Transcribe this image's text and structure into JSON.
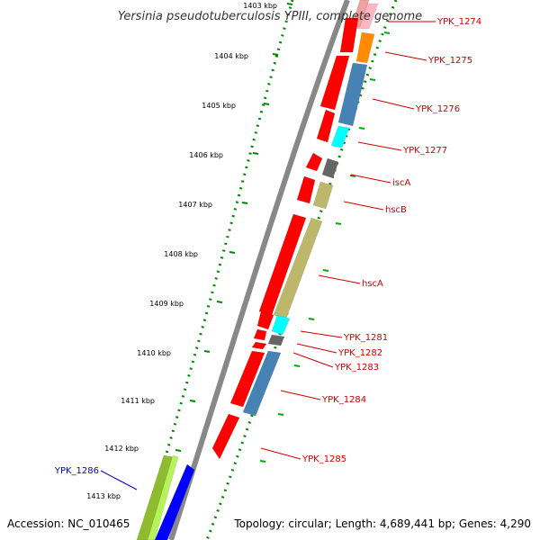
{
  "title": "Yersinia pseudotuberculosis YPIII, complete genome",
  "accession_text": "Accession: NC_010465",
  "summary_text": "Topology: circular; Length: 4,689,441 bp; Genes: 4,290",
  "colors": {
    "forward_strand": "#ff0000",
    "backbone": "#888888",
    "dotted_ruler": "#008800",
    "ticks_inner": "#00aa00",
    "label_forward": "#cc0000",
    "label_reverse": "#0000cc",
    "cds_blue": "#4682b4",
    "cds_cyan": "#00ffff",
    "cds_orange": "#ff8c00",
    "cds_gray": "#666666",
    "cds_khaki": "#bdb76b",
    "cds_pink": "#ffb6c1",
    "cds_olive": "#8fbc2f",
    "cds_lime": "#b6f25c",
    "cds_deepblue": "#0000ff"
  },
  "ticks": [
    {
      "label": "1403 kbp"
    },
    {
      "label": "1404 kbp"
    },
    {
      "label": "1405 kbp"
    },
    {
      "label": "1406 kbp"
    },
    {
      "label": "1407 kbp"
    },
    {
      "label": "1408 kbp"
    },
    {
      "label": "1409 kbp"
    },
    {
      "label": "1410 kbp"
    },
    {
      "label": "1411 kbp"
    },
    {
      "label": "1412 kbp"
    },
    {
      "label": "1413 kbp"
    }
  ],
  "genes": [
    {
      "name": "YPK_1274",
      "color": "#cc0000"
    },
    {
      "name": "YPK_1275",
      "color": "#cc0000"
    },
    {
      "name": "YPK_1276",
      "color": "#cc0000"
    },
    {
      "name": "YPK_1277",
      "color": "#cc0000"
    },
    {
      "name": "iscA",
      "color": "#cc0000"
    },
    {
      "name": "hscB",
      "color": "#cc0000"
    },
    {
      "name": "hscA",
      "color": "#cc0000"
    },
    {
      "name": "YPK_1281",
      "color": "#cc0000"
    },
    {
      "name": "YPK_1282",
      "color": "#cc0000"
    },
    {
      "name": "YPK_1283",
      "color": "#cc0000"
    },
    {
      "name": "YPK_1284",
      "color": "#cc0000"
    },
    {
      "name": "YPK_1285",
      "color": "#cc0000"
    },
    {
      "name": "YPK_1286",
      "color": "#0000cc"
    }
  ]
}
